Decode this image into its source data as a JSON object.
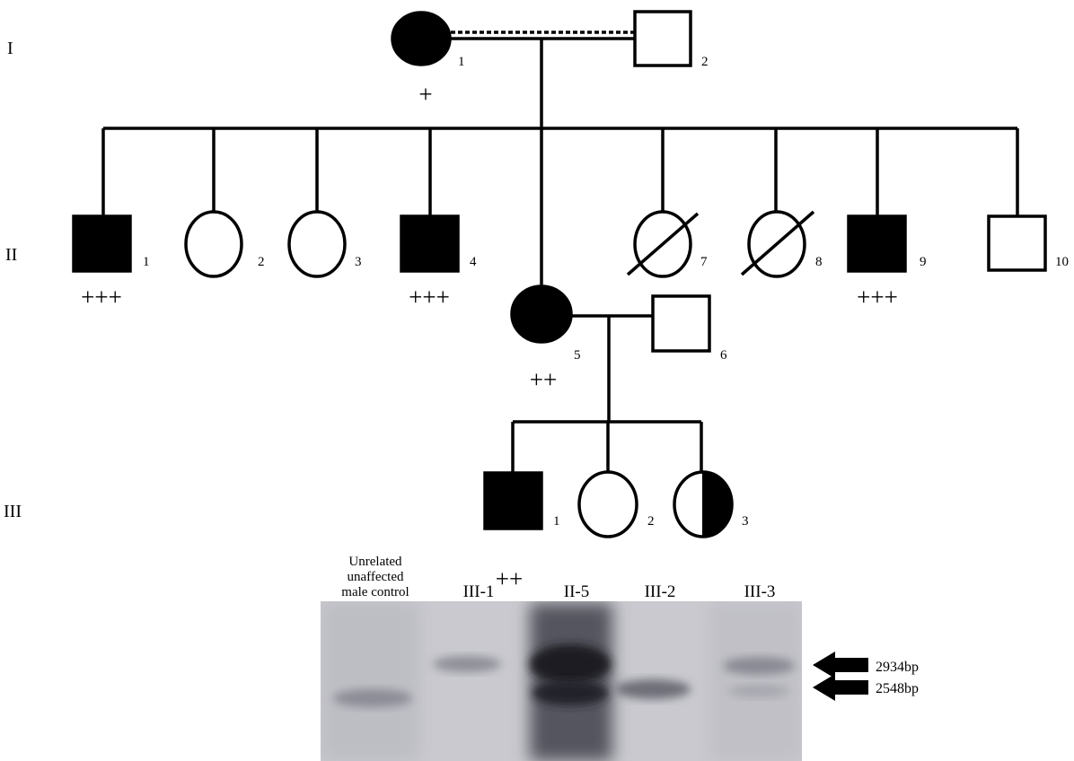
{
  "generations": [
    "I",
    "II",
    "III"
  ],
  "individuals": {
    "I": [
      {
        "number": "1",
        "marker": "+"
      },
      {
        "number": "2"
      }
    ],
    "II": [
      {
        "number": "1",
        "marker": "+++"
      },
      {
        "number": "2"
      },
      {
        "number": "3"
      },
      {
        "number": "4",
        "marker": "+++"
      },
      {
        "number": "5",
        "marker": "++"
      },
      {
        "number": "6"
      },
      {
        "number": "7"
      },
      {
        "number": "8"
      },
      {
        "number": "9",
        "marker": "+++"
      },
      {
        "number": "10"
      }
    ],
    "III": [
      {
        "number": "1",
        "marker": "++"
      },
      {
        "number": "2"
      },
      {
        "number": "3"
      }
    ]
  },
  "gel": {
    "lanes": [
      [
        "Unrelated",
        "unaffected",
        "male control"
      ],
      "III-1",
      "II-5",
      "III-2",
      "III-3"
    ],
    "bands": [
      "2934bp",
      "2548bp"
    ]
  }
}
